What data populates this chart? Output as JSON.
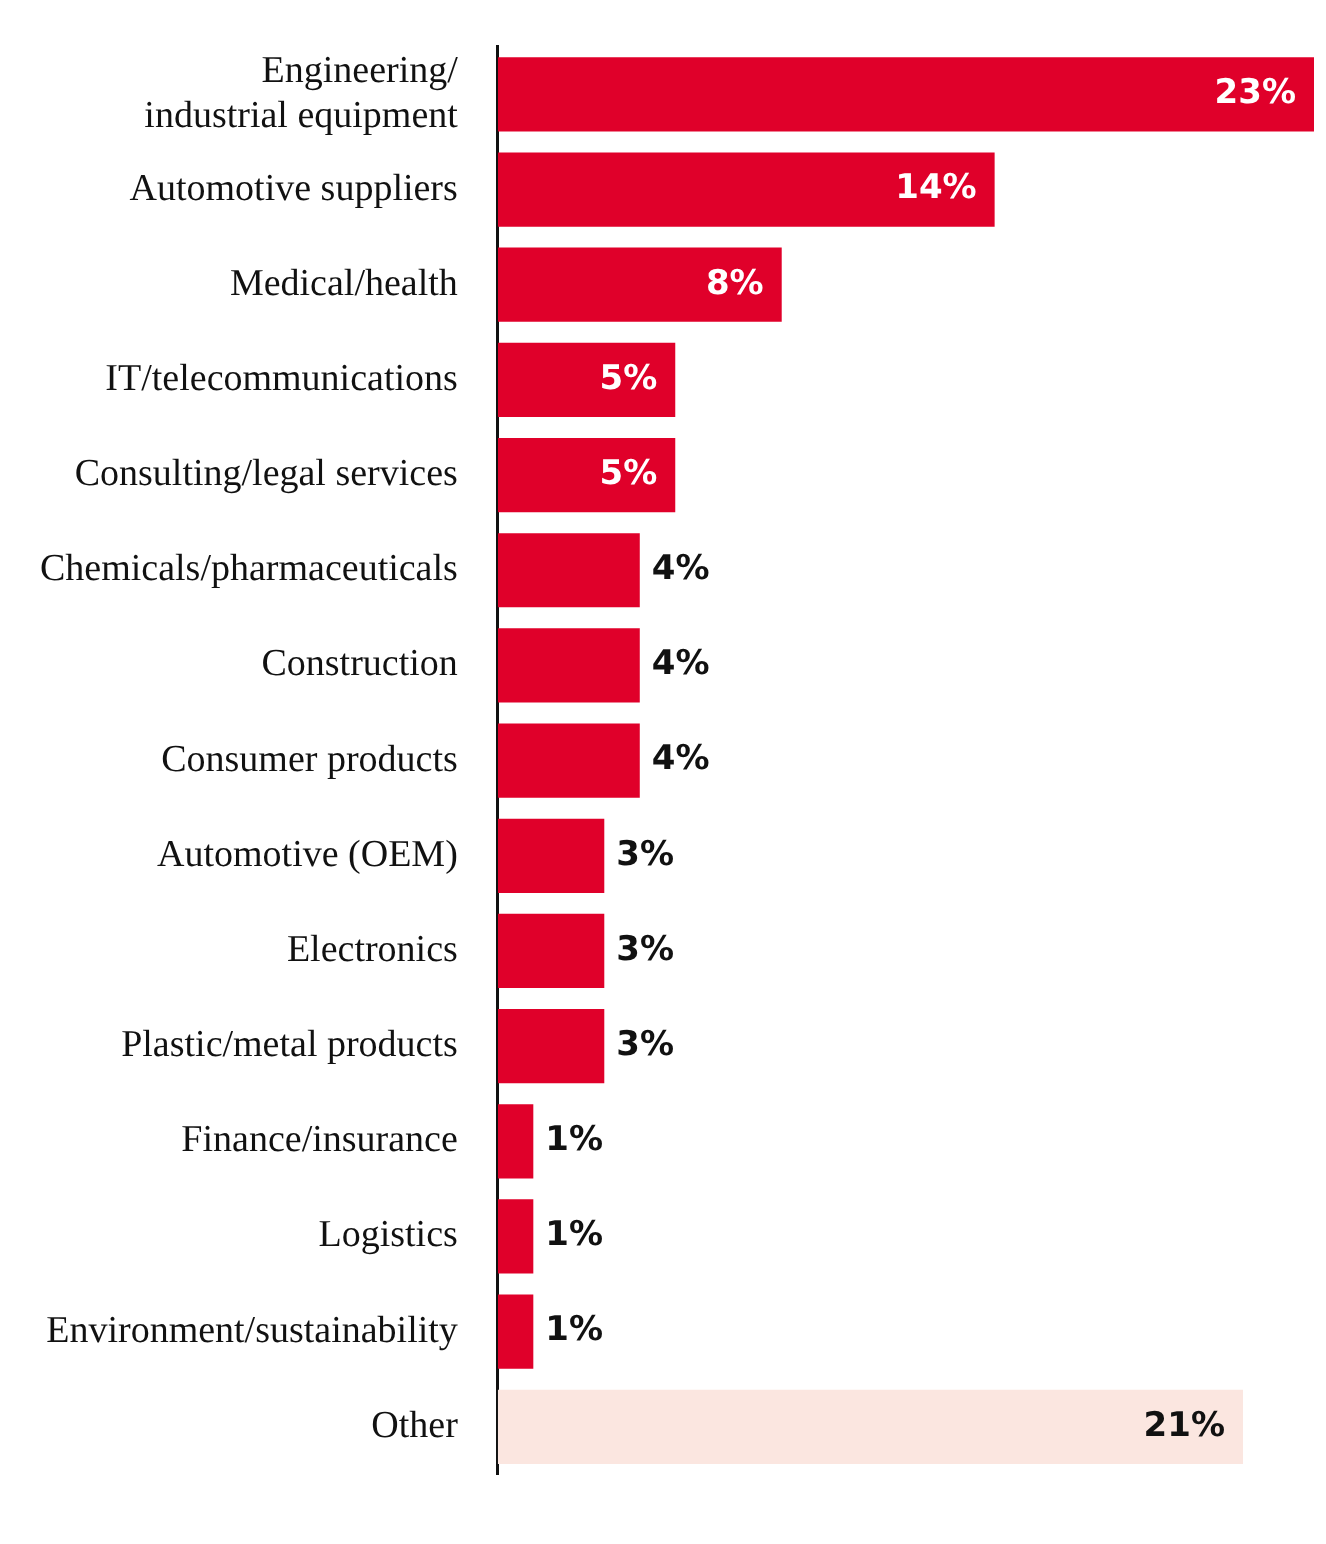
{
  "chart_data": {
    "type": "bar",
    "orientation": "horizontal",
    "categories": [
      "Engineering/\nindustrial equipment",
      "Automotive suppliers",
      "Medical/health",
      "IT/telecommunications",
      "Consulting/legal services",
      "Chemicals/pharmaceuticals",
      "Construction",
      "Consumer products",
      "Automotive (OEM)",
      "Electronics",
      "Plastic/metal products",
      "Finance/insurance",
      "Logistics",
      "Environment/sustainability",
      "Other"
    ],
    "values": [
      23,
      14,
      8,
      5,
      5,
      4,
      4,
      4,
      3,
      3,
      3,
      1,
      1,
      1,
      21
    ],
    "colors": [
      "#e0002a",
      "#e0002a",
      "#e0002a",
      "#e0002a",
      "#e0002a",
      "#e0002a",
      "#e0002a",
      "#e0002a",
      "#e0002a",
      "#e0002a",
      "#e0002a",
      "#e0002a",
      "#e0002a",
      "#e0002a",
      "#fbe6e0"
    ],
    "value_labels": [
      "23%",
      "14%",
      "8%",
      "5%",
      "5%",
      "4%",
      "4%",
      "4%",
      "3%",
      "3%",
      "3%",
      "1%",
      "1%",
      "1%",
      "21%"
    ],
    "legend": false
  }
}
